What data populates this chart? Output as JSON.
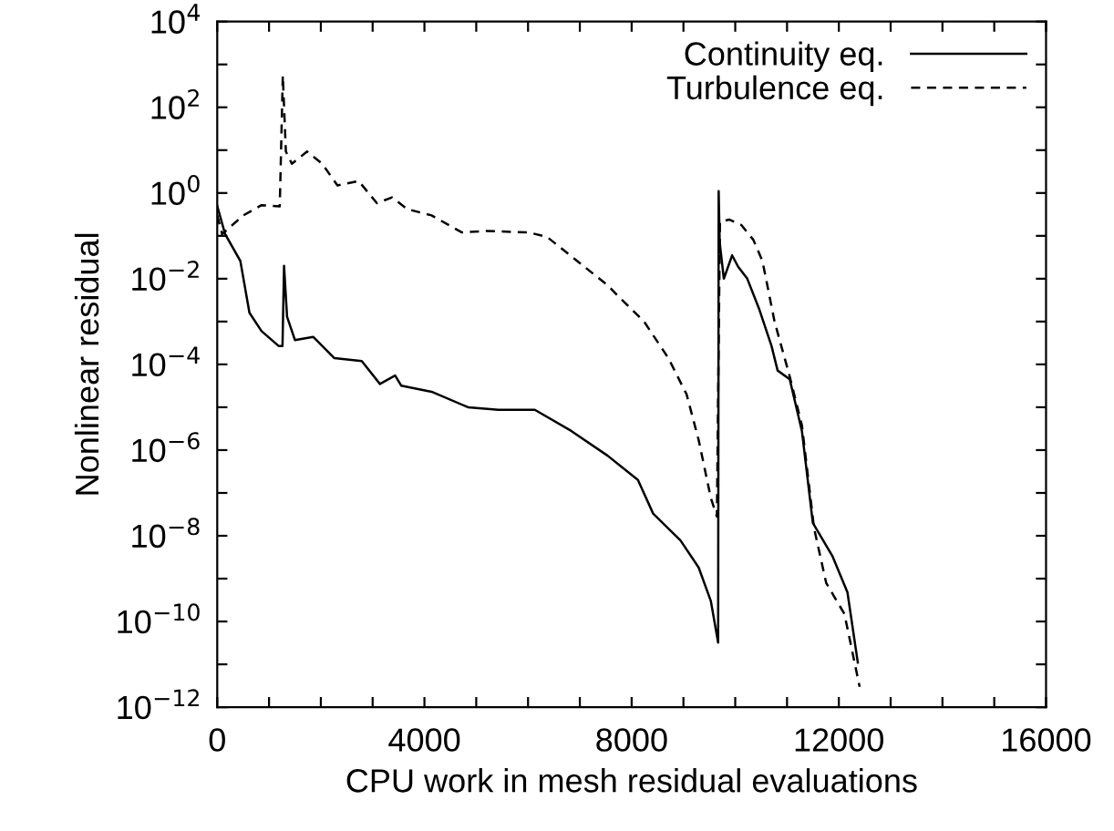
{
  "chart_data": {
    "type": "line",
    "xlabel": "CPU work in mesh residual evaluations",
    "ylabel": "Nonlinear residual",
    "log": "y",
    "legend": "top right",
    "grid": false,
    "xlim": [
      0,
      16000
    ],
    "xticks": [
      0,
      {
        "value": 1000,
        "label": null
      },
      {
        "value": 2000,
        "label": null
      },
      {
        "value": 3000,
        "label": null
      },
      4000,
      {
        "value": 5000,
        "label": null
      },
      {
        "value": 6000,
        "label": null
      },
      {
        "value": 7000,
        "label": null
      },
      8000,
      {
        "value": 9000,
        "label": null
      },
      {
        "value": 10000,
        "label": null
      },
      {
        "value": 11000,
        "label": null
      },
      12000,
      {
        "value": 13000,
        "label": null
      },
      {
        "value": 14000,
        "label": null
      },
      {
        "value": 15000,
        "label": null
      },
      16000
    ],
    "ylim": [
      1e-12,
      10000.0
    ],
    "yticks": [
      {
        "value": 10000.0,
        "label": "10$^{4}$"
      },
      {
        "value": 1000.0,
        "label": null
      },
      {
        "value": 100.0,
        "label": "10$^{2}$"
      },
      {
        "value": 10.0,
        "label": null
      },
      {
        "value": 1,
        "label": "10$^{0}$"
      },
      {
        "value": 0.1,
        "label": null
      },
      {
        "value": 0.01,
        "label": "10$^{−2}$"
      },
      {
        "value": 0.001,
        "label": null
      },
      {
        "value": 0.0001,
        "label": "10$^{−4}$"
      },
      {
        "value": 1e-05,
        "label": null
      },
      {
        "value": 1e-06,
        "label": "10$^{−6}$"
      },
      {
        "value": 1e-07,
        "label": null
      },
      {
        "value": 1e-08,
        "label": "10$^{−8}$"
      },
      {
        "value": 1e-09,
        "label": null
      },
      {
        "value": 1e-10,
        "label": "10$^{−10}$"
      },
      {
        "value": 1e-11,
        "label": null
      },
      {
        "value": 1e-12,
        "label": "10$^{−12}$"
      }
    ],
    "series": [
      {
        "name": "Continuity eq.",
        "color": "#000000",
        "line_style": "solid",
        "x": [
          0,
          152,
          446,
          622,
          855,
          1184,
          1260,
          1290,
          1348,
          1500,
          1852,
          2262,
          2790,
          3141,
          3434,
          3551,
          4138,
          4841,
          5427,
          6131,
          6834,
          7537,
          8122,
          8415,
          8943,
          9295,
          9529,
          9670,
          9680,
          9700,
          9780,
          9940,
          10056,
          10232,
          10466,
          10700,
          10818,
          11052,
          11287,
          11498,
          11874,
          12166,
          12366
        ],
        "values": [
          0.5,
          0.11,
          0.026,
          0.0016,
          0.0006,
          0.00027,
          0.00027,
          0.02,
          0.0013,
          0.00037,
          0.00044,
          0.00014,
          0.00012,
          3.5e-05,
          5.5e-05,
          3.2e-05,
          2.3e-05,
          1e-05,
          8.7e-06,
          8.7e-06,
          2.8e-06,
          7.4e-07,
          2e-07,
          3.3e-08,
          7.8e-09,
          1.8e-09,
          3e-10,
          3.2e-11,
          1.1,
          0.07,
          0.01,
          0.035,
          0.019,
          0.01,
          0.0019,
          0.00027,
          7.2e-05,
          4.5e-05,
          2.8e-06,
          2e-08,
          3.4e-09,
          4.8e-10,
          1.1e-11
        ]
      },
      {
        "name": "Turbulence eq.",
        "color": "#000000",
        "line_style": "dashed",
        "x": [
          0,
          94,
          504,
          855,
          1207,
          1266,
          1325,
          1441,
          1735,
          2028,
          2321,
          2731,
          3083,
          3376,
          3669,
          4138,
          4724,
          5193,
          6013,
          6365,
          7537,
          7771,
          8240,
          8709,
          9061,
          9295,
          9529,
          9646,
          9705,
          9881,
          10115,
          10349,
          10525,
          10759,
          11052,
          11287,
          11522,
          11756,
          12108,
          12401
        ],
        "values": [
          0.3,
          0.11,
          0.3,
          0.52,
          0.49,
          550,
          9.3,
          4.8,
          9.3,
          4.8,
          1.5,
          1.9,
          0.58,
          0.79,
          0.42,
          0.3,
          0.12,
          0.13,
          0.12,
          0.095,
          0.007,
          0.0036,
          0.001,
          0.00014,
          2e-05,
          1.7e-06,
          7.6e-08,
          2.8e-08,
          0.21,
          0.24,
          0.18,
          0.081,
          0.026,
          0.001,
          5.2e-05,
          3.8e-06,
          1.5e-08,
          7.9e-10,
          1.5e-10,
          3e-12
        ]
      }
    ]
  }
}
